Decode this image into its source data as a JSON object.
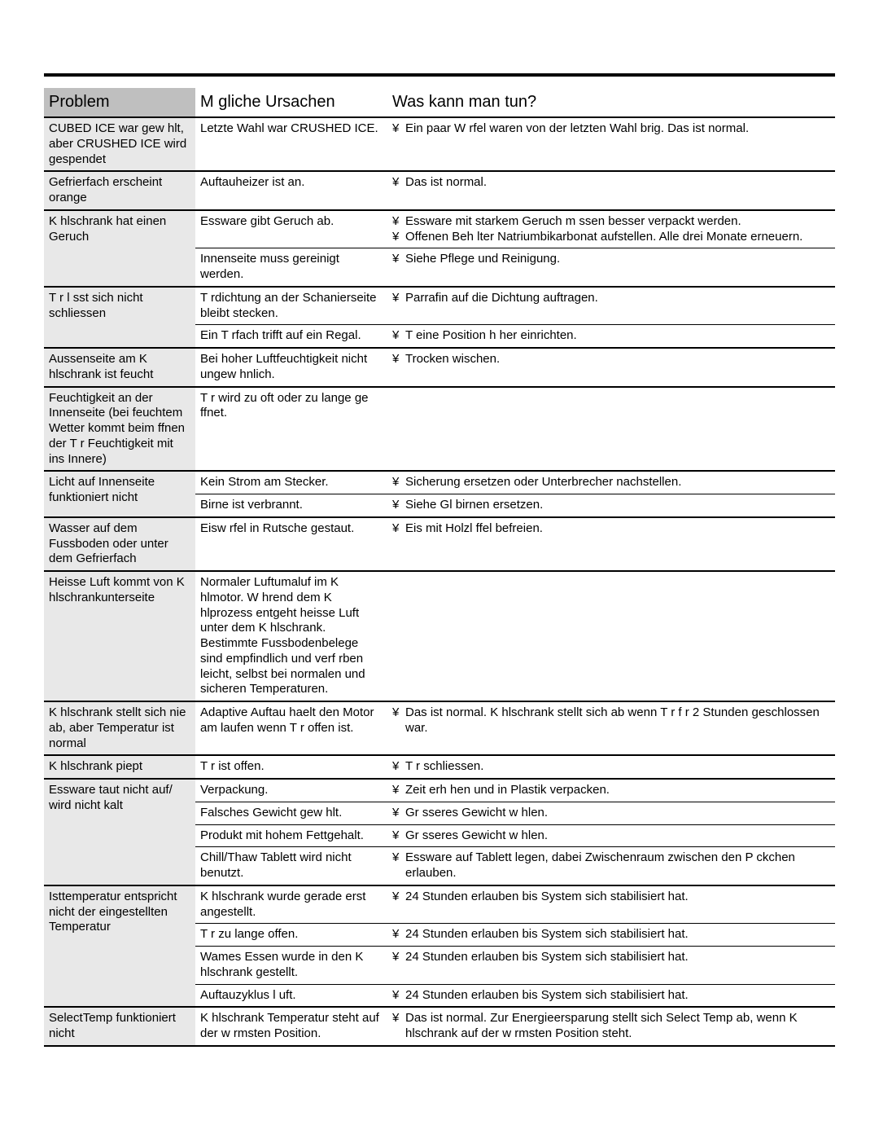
{
  "colors": {
    "page_bg": "#ffffff",
    "text": "#000000",
    "header_problem_bg": "#bfbfbf",
    "problem_col_bg": "#e8e8e8",
    "heavy_rule": "#000000",
    "thin_rule": "#000000"
  },
  "typography": {
    "header_fontsize_pt": 15,
    "body_fontsize_pt": 11,
    "font_family": "Helvetica"
  },
  "bullet_glyph": "¥",
  "headers": {
    "problem": "Problem",
    "cause": "M gliche Ursachen",
    "solution": "Was kann man tun?"
  },
  "groups": [
    {
      "problem": "CUBED ICE war gew hlt, aber CRUSHED ICE wird gespendet",
      "rows": [
        {
          "cause": "Letzte Wahl war CRUSHED ICE.",
          "solutions": [
            "Ein paar W rfel waren von der letzten Wahl  brig. Das ist normal."
          ]
        }
      ]
    },
    {
      "problem": "Gefrierfach erscheint orange",
      "rows": [
        {
          "cause": "Auftauheizer ist an.",
          "solutions": [
            "Das ist normal."
          ]
        }
      ]
    },
    {
      "problem": "K hlschrank hat einen Geruch",
      "rows": [
        {
          "cause": "Essware gibt Geruch ab.",
          "solutions": [
            "Essware mit starkem Geruch m ssen besser verpackt werden.",
            "Offenen Beh lter Natriumbikarbonat  aufstellen. Alle drei Monate erneuern."
          ]
        },
        {
          "cause": "Innenseite muss gereinigt werden.",
          "solutions": [
            "Siehe Pflege und Reinigung."
          ]
        }
      ]
    },
    {
      "problem": "T r l sst sich nicht schliessen",
      "rows": [
        {
          "cause": "T rdichtung an der Schanierseite bleibt stecken.",
          "solutions": [
            "Parrafin auf die Dichtung auftragen."
          ]
        },
        {
          "cause": "Ein T rfach trifft auf ein Regal.",
          "solutions": [
            "T  eine Position h her einrichten."
          ]
        }
      ]
    },
    {
      "problem": "Aussenseite am K hlschrank ist feucht",
      "rows": [
        {
          "cause": "Bei hoher Luftfeuchtigkeit nicht ungew hnlich.",
          "solutions": [
            "Trocken wischen."
          ]
        }
      ]
    },
    {
      "problem": "Feuchtigkeit an der Innenseite (bei feuchtem Wetter kommt beim  ffnen der T r Feuchtigkeit mit ins Innere)",
      "rows": [
        {
          "cause": "T r wird zu oft oder zu lange ge ffnet.",
          "solutions": []
        }
      ]
    },
    {
      "problem": "Licht auf Innenseite funktioniert nicht",
      "rows": [
        {
          "cause": "Kein Strom am Stecker.",
          "solutions": [
            "Sicherung ersetzen oder Unterbrecher nachstellen."
          ]
        },
        {
          "cause": "Birne ist verbrannt.",
          "solutions": [
            "Siehe Gl birnen ersetzen."
          ]
        }
      ]
    },
    {
      "problem": "Wasser auf dem Fussboden oder unter dem Gefrierfach",
      "rows": [
        {
          "cause": "Eisw rfel in Rutsche gestaut.",
          "solutions": [
            "Eis mit Holzl ffel befreien."
          ]
        }
      ]
    },
    {
      "problem": "Heisse Luft kommt von K hlschrankunterseite",
      "rows": [
        {
          "cause": "Normaler Luftumaluf im K hlmotor. W hrend dem K hlprozess entgeht heisse Luft unter dem K hlschrank. Bestimmte Fussbodenbelege sind empfindlich und verf rben leicht, selbst bei normalen und sicheren Temperaturen.",
          "solutions": []
        }
      ]
    },
    {
      "problem": "K hlschrank stellt sich nie ab, aber Temperatur ist normal",
      "rows": [
        {
          "cause": "Adaptive Auftau haelt den Motor am laufen wenn T r offen ist.",
          "solutions": [
            "Das ist normal. K hlschrank stellt sich ab wenn T r f r 2 Stunden geschlossen war."
          ]
        }
      ]
    },
    {
      "problem": "K hlschrank piept",
      "rows": [
        {
          "cause": "T r ist offen.",
          "solutions": [
            "T r schliessen."
          ]
        }
      ]
    },
    {
      "problem": "Essware taut nicht auf/ wird nicht kalt",
      "rows": [
        {
          "cause": "Verpackung.",
          "solutions": [
            "Zeit erh hen und in Plastik verpacken."
          ]
        },
        {
          "cause": "Falsches Gewicht gew hlt.",
          "solutions": [
            "Gr sseres Gewicht w hlen."
          ]
        },
        {
          "cause": "Produkt mit hohem Fettgehalt.",
          "solutions": [
            "Gr sseres Gewicht w hlen."
          ]
        },
        {
          "cause": "Chill/Thaw Tablett wird nicht benutzt.",
          "solutions": [
            "Essware auf Tablett legen, dabei Zwischenraum zwischen den P ckchen erlauben."
          ]
        }
      ]
    },
    {
      "problem": "Isttemperatur entspricht nicht der eingestellten Temperatur",
      "rows": [
        {
          "cause": "K hlschrank wurde gerade erst angestellt.",
          "solutions": [
            "24 Stunden erlauben bis System sich stabilisiert hat."
          ]
        },
        {
          "cause": "T r zu lange offen.",
          "solutions": [
            "24 Stunden erlauben bis System sich stabilisiert hat."
          ]
        },
        {
          "cause": "Wames Essen wurde in den K hlschrank gestellt.",
          "solutions": [
            "24 Stunden erlauben bis System sich stabilisiert hat."
          ]
        },
        {
          "cause": "Auftauzyklus l uft.",
          "solutions": [
            "24 Stunden erlauben bis System sich stabilisiert hat."
          ]
        }
      ]
    },
    {
      "problem": "SelectTemp funktioniert nicht",
      "rows": [
        {
          "cause": "K hlschrank Temperatur steht auf der w rmsten Position.",
          "solutions": [
            "Das ist normal. Zur Energieersparung stellt sich Select Temp ab, wenn K hlschrank auf der w rmsten Position steht."
          ]
        }
      ]
    }
  ]
}
